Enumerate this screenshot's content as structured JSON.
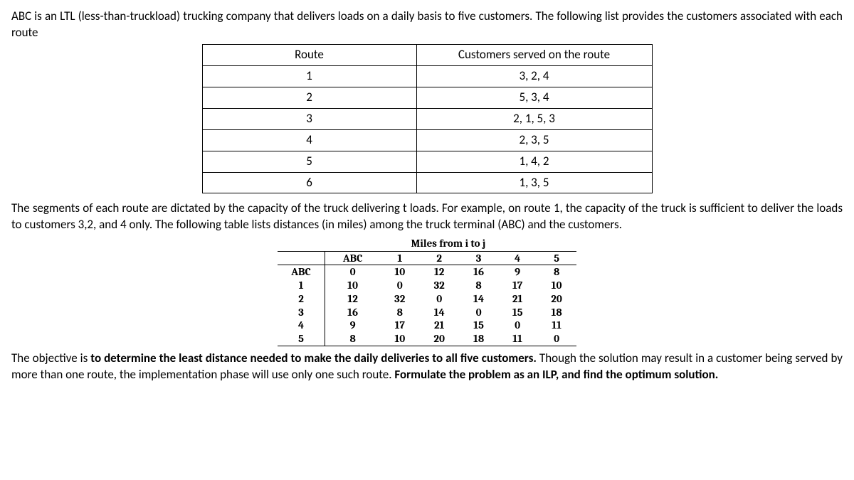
{
  "para1": "ABC is an LTL (less-than-truckload) trucking company that delivers loads on a daily basis to five customers. The following list provides the customers associated with each route",
  "route_table": {
    "headers": [
      "Route",
      "Customers served on the route"
    ],
    "rows": [
      [
        "1",
        "3, 2, 4"
      ],
      [
        "2",
        "5, 3, 4"
      ],
      [
        "3",
        "2, 1, 5, 3"
      ],
      [
        "4",
        "2, 3, 5"
      ],
      [
        "5",
        "1, 4, 2"
      ],
      [
        "6",
        "1, 3, 5"
      ]
    ]
  },
  "para2": "The segments of each route are dictated by the capacity of the truck delivering t loads. For example, on route 1, the capacity of the truck is sufficient to deliver the loads to customers 3,2, and 4 only. The following table lists distances (in miles) among the truck terminal (ABC) and the customers.",
  "miles_title": "Miles from i to j",
  "miles_table": {
    "col_headers": [
      "ABC",
      "1",
      "2",
      "3",
      "4",
      "5"
    ],
    "row_headers": [
      "ABC",
      "1",
      "2",
      "3",
      "4",
      "5"
    ],
    "rows": [
      [
        0,
        10,
        12,
        16,
        9,
        8
      ],
      [
        10,
        0,
        32,
        8,
        17,
        10
      ],
      [
        12,
        32,
        0,
        14,
        21,
        20
      ],
      [
        16,
        8,
        14,
        0,
        15,
        18
      ],
      [
        9,
        17,
        21,
        15,
        0,
        11
      ],
      [
        8,
        10,
        20,
        18,
        11,
        0
      ]
    ]
  },
  "para3a": "The objective is ",
  "para3b": "to determine the least distance needed to make the daily deliveries to all five customers.",
  "para3c": " Though the solution may result in a customer being served by more than one route, the implementation phase will use only one such route. ",
  "para3d": "Formulate the problem as an ILP, and find the optimum solution."
}
